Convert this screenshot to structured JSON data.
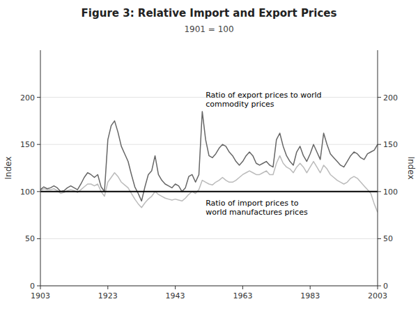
{
  "chart_data": {
    "type": "line",
    "title": "Figure 3: Relative Import and Export Prices",
    "subtitle": "1901 = 100",
    "y_label": "Index",
    "y2_label": "Index",
    "x": [
      1903,
      1904,
      1905,
      1906,
      1907,
      1908,
      1909,
      1910,
      1911,
      1912,
      1913,
      1914,
      1915,
      1916,
      1917,
      1918,
      1919,
      1920,
      1921,
      1922,
      1923,
      1924,
      1925,
      1926,
      1927,
      1928,
      1929,
      1930,
      1931,
      1932,
      1933,
      1934,
      1935,
      1936,
      1937,
      1938,
      1939,
      1940,
      1941,
      1942,
      1943,
      1944,
      1945,
      1946,
      1947,
      1948,
      1949,
      1950,
      1951,
      1952,
      1953,
      1954,
      1955,
      1956,
      1957,
      1958,
      1959,
      1960,
      1961,
      1962,
      1963,
      1964,
      1965,
      1966,
      1967,
      1968,
      1969,
      1970,
      1971,
      1972,
      1973,
      1974,
      1975,
      1976,
      1977,
      1978,
      1979,
      1980,
      1981,
      1982,
      1983,
      1984,
      1985,
      1986,
      1987,
      1988,
      1989,
      1990,
      1991,
      1992,
      1993,
      1994,
      1995,
      1996,
      1997,
      1998,
      1999,
      2000,
      2001,
      2002,
      2003
    ],
    "xlim": [
      1903,
      2003
    ],
    "xticks": [
      1903,
      1923,
      1943,
      1963,
      1983,
      2003
    ],
    "ylim": [
      0,
      250
    ],
    "yticks": [
      0,
      50,
      100,
      150,
      200
    ],
    "y2lim": [
      0,
      250
    ],
    "y2ticks": [
      0,
      50,
      100,
      150,
      200
    ],
    "grid": true,
    "hline": 100,
    "series": [
      {
        "color": "#666666",
        "values": [
          102,
          105,
          103,
          104,
          106,
          104,
          100,
          101,
          104,
          106,
          104,
          102,
          108,
          115,
          120,
          118,
          115,
          118,
          105,
          100,
          155,
          170,
          175,
          163,
          148,
          140,
          132,
          118,
          105,
          98,
          90,
          105,
          118,
          122,
          138,
          118,
          112,
          108,
          106,
          104,
          108,
          106,
          100,
          104,
          116,
          118,
          110,
          118,
          185,
          155,
          138,
          136,
          140,
          146,
          150,
          148,
          142,
          138,
          132,
          128,
          132,
          138,
          142,
          138,
          130,
          128,
          130,
          132,
          128,
          126,
          155,
          162,
          148,
          138,
          132,
          128,
          142,
          148,
          138,
          132,
          140,
          150,
          142,
          134,
          162,
          150,
          140,
          136,
          132,
          128,
          126,
          132,
          138,
          142,
          140,
          136,
          134,
          140,
          142,
          144,
          150
        ]
      },
      {
        "color": "#bbbbbb",
        "values": [
          101,
          103,
          102,
          102,
          103,
          101,
          98,
          99,
          101,
          102,
          101,
          99,
          102,
          105,
          108,
          108,
          106,
          108,
          100,
          95,
          110,
          115,
          120,
          116,
          110,
          107,
          104,
          98,
          92,
          87,
          83,
          88,
          92,
          95,
          100,
          97,
          95,
          93,
          92,
          91,
          92,
          91,
          90,
          93,
          97,
          100,
          98,
          102,
          112,
          110,
          108,
          107,
          110,
          112,
          115,
          112,
          110,
          110,
          112,
          115,
          118,
          120,
          122,
          120,
          118,
          118,
          120,
          122,
          118,
          118,
          130,
          138,
          130,
          126,
          124,
          120,
          126,
          130,
          126,
          120,
          126,
          132,
          126,
          120,
          128,
          124,
          118,
          115,
          112,
          110,
          108,
          110,
          114,
          116,
          114,
          110,
          106,
          102,
          98,
          87,
          78
        ]
      }
    ],
    "annotations": [
      {
        "text": "Ratio of export prices to world\ncommodity prices",
        "x": 1952,
        "y": 208
      },
      {
        "text": "Ratio of import prices to\nworld manufactures prices",
        "x": 1952,
        "y": 93
      }
    ]
  }
}
